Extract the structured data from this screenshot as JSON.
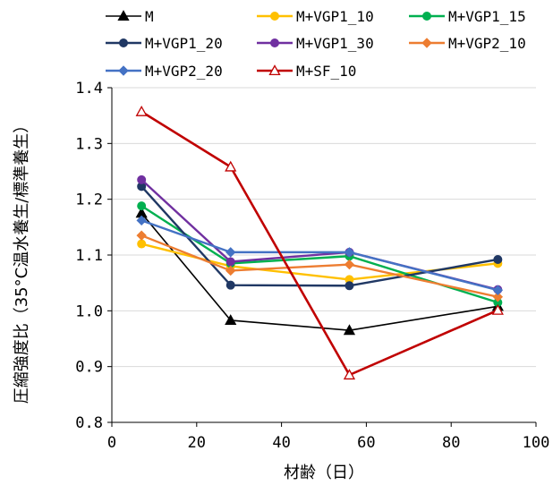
{
  "chart_data": {
    "type": "line",
    "xlabel": "材齢（日）",
    "ylabel": "圧縮強度比（35°C温水養生/標準養生）",
    "xlim": [
      0,
      100
    ],
    "ylim": [
      0.8,
      1.4
    ],
    "xticks": [
      0,
      20,
      40,
      60,
      80,
      100
    ],
    "yticks": [
      0.8,
      0.9,
      1.0,
      1.1,
      1.2,
      1.3,
      1.4
    ],
    "ytick_labels": [
      "0.8",
      "0.9",
      "1.0",
      "1.1",
      "1.2",
      "1.3",
      "1.4"
    ],
    "grid": "horizontal",
    "legend_position": "top",
    "x": [
      7,
      28,
      56,
      91
    ],
    "series": [
      {
        "name": "M",
        "color": "#000000",
        "marker": "filled-triangle",
        "values": [
          1.175,
          0.983,
          0.965,
          1.008
        ]
      },
      {
        "name": "M+VGP1_10",
        "color": "#FFC000",
        "marker": "filled-circle",
        "values": [
          1.12,
          1.08,
          1.056,
          1.085
        ]
      },
      {
        "name": "M+VGP1_15",
        "color": "#00B050",
        "marker": "filled-circle",
        "values": [
          1.188,
          1.085,
          1.098,
          1.015
        ]
      },
      {
        "name": "M+VGP1_20",
        "color": "#203864",
        "marker": "filled-circle",
        "values": [
          1.223,
          1.046,
          1.045,
          1.092
        ]
      },
      {
        "name": "M+VGP1_30",
        "color": "#7030A0",
        "marker": "filled-circle",
        "values": [
          1.235,
          1.088,
          1.105,
          1.038
        ]
      },
      {
        "name": "M+VGP2_10",
        "color": "#ED7D31",
        "marker": "filled-diamond",
        "values": [
          1.135,
          1.072,
          1.083,
          1.025
        ]
      },
      {
        "name": "M+VGP2_20",
        "color": "#4472C4",
        "marker": "filled-diamond",
        "values": [
          1.162,
          1.105,
          1.105,
          1.037
        ]
      },
      {
        "name": "M+SF_10",
        "color": "#C00000",
        "marker": "open-triangle",
        "values": [
          1.357,
          1.258,
          0.885,
          1.001
        ]
      }
    ]
  }
}
